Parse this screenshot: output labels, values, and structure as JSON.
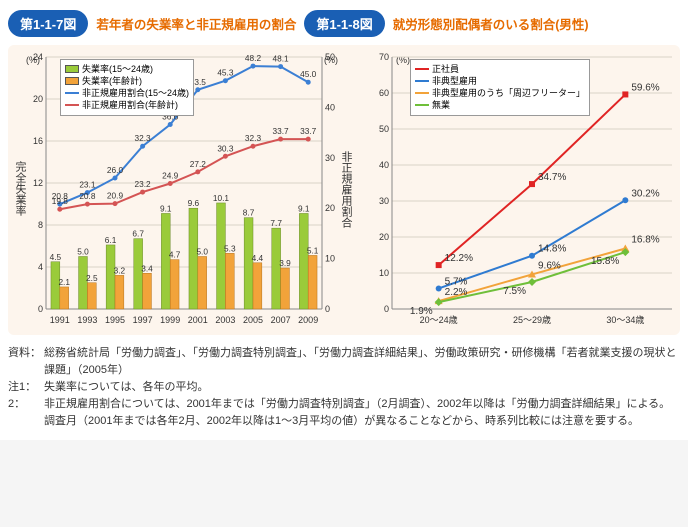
{
  "fig1": {
    "badge": "第1-1-7図",
    "title": "若年者の失業率と非正規雇用の割合",
    "left_axis_label": "完全失業率",
    "right_axis_label": "非正規雇用割合",
    "left_unit": "(%)",
    "right_unit": "(%)",
    "left_ylim": [
      0,
      24
    ],
    "left_step": 4,
    "right_ylim": [
      0,
      50
    ],
    "right_step": 10,
    "years": [
      "1991",
      "1993",
      "1995",
      "1997",
      "1999",
      "2001",
      "2003",
      "2005",
      "2007",
      "2009"
    ],
    "bar_colors": {
      "bar1": "#9acb3a",
      "bar2": "#f2a33a"
    },
    "line_colors": {
      "line1": "#3b7fd4",
      "line2": "#d45454"
    },
    "legend": {
      "bar1": "失業率(15～24歳)",
      "bar2": "失業率(年齢計)",
      "line1": "非正規雇用割合(15～24歳)",
      "line2": "非正規雇用割合(年齢計)"
    },
    "bar1": [
      4.5,
      5.0,
      6.1,
      6.7,
      9.1,
      9.6,
      10.1,
      8.7,
      7.7,
      9.1
    ],
    "bar2": [
      2.1,
      2.5,
      3.2,
      3.4,
      4.7,
      5.0,
      5.3,
      4.4,
      3.9,
      5.1
    ],
    "line1": [
      20.8,
      23.1,
      26.0,
      32.3,
      36.6,
      43.5,
      45.3,
      48.2,
      48.1,
      45.0
    ],
    "line2": [
      19.8,
      20.8,
      20.9,
      23.2,
      24.9,
      27.2,
      30.3,
      32.3,
      33.7,
      33.7
    ]
  },
  "fig2": {
    "badge": "第1-1-8図",
    "title": "就労形態別配偶者のいる割合(男性)",
    "unit": "(%)",
    "ylim": [
      0,
      70
    ],
    "ystep": 10,
    "categories": [
      "20～24歳",
      "25～29歳",
      "30～34歳"
    ],
    "legend": {
      "s1": "正社員",
      "s2": "非典型雇用",
      "s3": "非典型雇用のうち「周辺フリーター」",
      "s4": "無業"
    },
    "colors": {
      "s1": "#e02424",
      "s2": "#2f7bd1",
      "s3": "#f2a33a",
      "s4": "#6fbf3a"
    },
    "s1": [
      12.2,
      34.7,
      59.6
    ],
    "s2": [
      5.7,
      14.8,
      30.2
    ],
    "s3": [
      2.2,
      9.6,
      16.8
    ],
    "s4": [
      1.9,
      7.5,
      15.8
    ]
  },
  "notes": {
    "source_label": "資料：",
    "source_text": "総務省統計局「労働力調査」、「労働力調査特別調査」、「労働力調査詳細結果」、労働政策研究・研修機構「若者就業支援の現状と課題」（2005年）",
    "n1_label": "注1：",
    "n1_text": "失業率については、各年の平均。",
    "n2_label": "2：",
    "n2_text": "非正規雇用割合については、2001年までは「労働力調査特別調査」（2月調査）、2002年以降は「労働力調査詳細結果」による。",
    "n3_text": "調査月（2001年までは各年2月、2002年以降は1～3月平均の値）が異なることなどから、時系列比較には注意を要する。"
  }
}
